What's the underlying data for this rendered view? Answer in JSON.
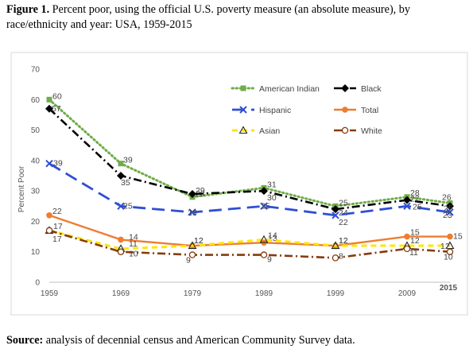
{
  "caption": {
    "label": "Figure 1.",
    "text": " Percent poor, using the official U.S. poverty measure (an absolute measure), by race/ethnicity and year: USA, 1959-2015"
  },
  "source": {
    "label": "Source:",
    "text": " analysis of decennial census and American Community Survey data."
  },
  "chart_data": {
    "type": "line",
    "title": "",
    "xlabel": "",
    "ylabel": "Percent Poor",
    "x": [
      1959,
      1969,
      1979,
      1989,
      1999,
      2009,
      2015
    ],
    "xticks": [
      "1959",
      "1969",
      "1979",
      "1989",
      "1999",
      "2009",
      "2015"
    ],
    "yticks": [
      "0",
      "10",
      "20",
      "30",
      "40",
      "50",
      "60",
      "70"
    ],
    "ylim": [
      0,
      70
    ],
    "grid": false,
    "legend": "top-right",
    "series": [
      {
        "name": "American Indian",
        "values": [
          60,
          39,
          28,
          31,
          25,
          28,
          26
        ],
        "color": "#70AD47",
        "dash": "dotted",
        "marker": "square"
      },
      {
        "name": "Black",
        "values": [
          57,
          35,
          29,
          30,
          24,
          27,
          25
        ],
        "color": "#000000",
        "dash": "dashdot",
        "marker": "diamond"
      },
      {
        "name": "Hispanic",
        "values": [
          39,
          25,
          23,
          25,
          22,
          25,
          23
        ],
        "color": "#2E4FD6",
        "dash": "longdash",
        "marker": "x"
      },
      {
        "name": "Total",
        "values": [
          22,
          14,
          12,
          13,
          12,
          15,
          15
        ],
        "color": "#ED7D31",
        "dash": "solid",
        "marker": "circle"
      },
      {
        "name": "Asian",
        "values": [
          17,
          11,
          12,
          14,
          12,
          12,
          12
        ],
        "color": "#FFE600",
        "dash": "dashed",
        "marker": "triangle"
      },
      {
        "name": "White",
        "values": [
          17,
          10,
          9,
          9,
          8,
          11,
          10
        ],
        "color": "#843C0C",
        "dash": "dashdot",
        "marker": "opencircle"
      }
    ]
  }
}
